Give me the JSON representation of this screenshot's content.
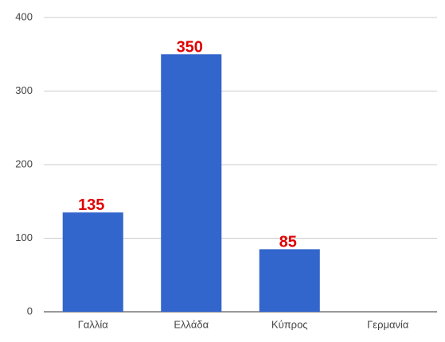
{
  "chart_data": {
    "type": "bar",
    "categories": [
      "Γαλλία",
      "Ελλάδα",
      "Κύπρος",
      "Γερμανία"
    ],
    "values": [
      135,
      350,
      85,
      0
    ],
    "color": "#3366cc",
    "label_color": "#e00000",
    "ylim": [
      0,
      400
    ],
    "yticks": [
      0,
      100,
      200,
      300,
      400
    ],
    "grid": true
  }
}
